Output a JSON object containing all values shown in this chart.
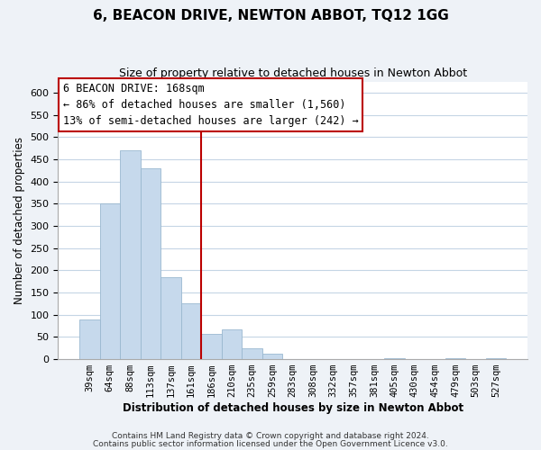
{
  "title": "6, BEACON DRIVE, NEWTON ABBOT, TQ12 1GG",
  "subtitle": "Size of property relative to detached houses in Newton Abbot",
  "xlabel": "Distribution of detached houses by size in Newton Abbot",
  "ylabel": "Number of detached properties",
  "bar_labels": [
    "39sqm",
    "64sqm",
    "88sqm",
    "113sqm",
    "137sqm",
    "161sqm",
    "186sqm",
    "210sqm",
    "235sqm",
    "259sqm",
    "283sqm",
    "308sqm",
    "332sqm",
    "357sqm",
    "381sqm",
    "405sqm",
    "430sqm",
    "454sqm",
    "479sqm",
    "503sqm",
    "527sqm"
  ],
  "bar_values": [
    90,
    350,
    470,
    430,
    185,
    125,
    57,
    68,
    25,
    12,
    0,
    0,
    0,
    0,
    0,
    2,
    0,
    0,
    2,
    0,
    2
  ],
  "bar_color": "#c6d9ec",
  "bar_edge_color": "#9ab8d0",
  "ylim": [
    0,
    625
  ],
  "yticks": [
    0,
    50,
    100,
    150,
    200,
    250,
    300,
    350,
    400,
    450,
    500,
    550,
    600
  ],
  "vline_x": 5.5,
  "vline_color": "#bb0000",
  "annotation_title": "6 BEACON DRIVE: 168sqm",
  "annotation_line1": "← 86% of detached houses are smaller (1,560)",
  "annotation_line2": "13% of semi-detached houses are larger (242) →",
  "annotation_box_facecolor": "#ffffff",
  "annotation_box_edgecolor": "#bb0000",
  "footer1": "Contains HM Land Registry data © Crown copyright and database right 2024.",
  "footer2": "Contains public sector information licensed under the Open Government Licence v3.0.",
  "background_color": "#eef2f7",
  "plot_background": "#ffffff",
  "grid_color": "#c5d5e5",
  "title_fontsize": 11,
  "subtitle_fontsize": 9,
  "axis_label_fontsize": 8.5,
  "tick_fontsize": 8,
  "xtick_fontsize": 7.5,
  "annotation_fontsize": 8.5,
  "footer_fontsize": 6.5
}
